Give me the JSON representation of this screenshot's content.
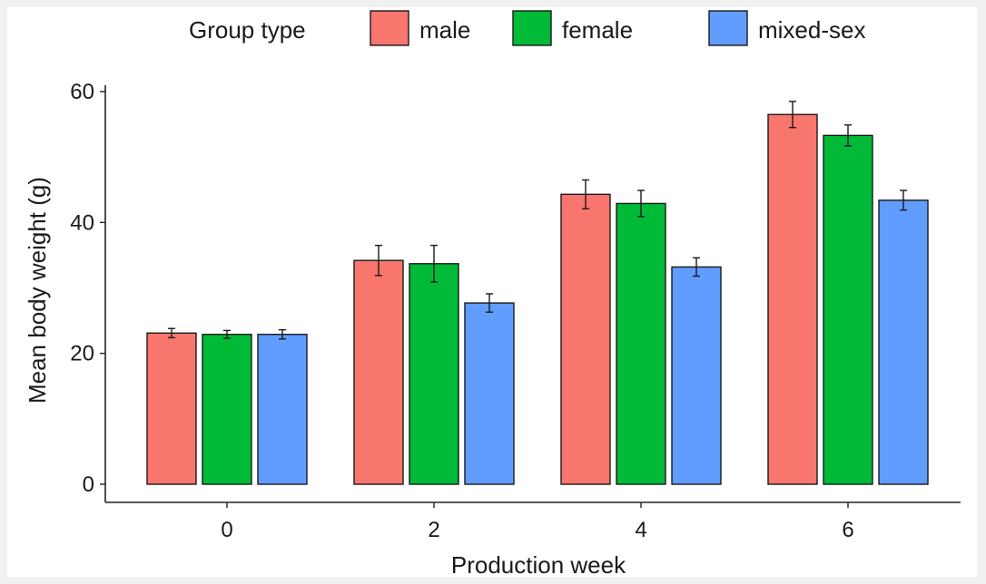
{
  "chart_data": {
    "type": "bar",
    "xlabel": "Production week",
    "ylabel": "Mean body weight (g)",
    "ylim": [
      0,
      60
    ],
    "yticks": [
      0,
      20,
      40,
      60
    ],
    "categories": [
      "0",
      "2",
      "4",
      "6"
    ],
    "legend": {
      "title": "Group type",
      "position": "top"
    },
    "grid": false,
    "series": [
      {
        "name": "male",
        "color": "#F8766D",
        "values": [
          23.1,
          34.2,
          44.3,
          56.5
        ],
        "errors": [
          0.7,
          2.3,
          2.2,
          2.0
        ]
      },
      {
        "name": "female",
        "color": "#00BA38",
        "values": [
          22.9,
          33.7,
          42.9,
          53.3
        ],
        "errors": [
          0.6,
          2.8,
          2.0,
          1.6
        ]
      },
      {
        "name": "mixed-sex",
        "color": "#619CFF",
        "values": [
          22.9,
          27.7,
          33.2,
          43.4
        ],
        "errors": [
          0.7,
          1.4,
          1.4,
          1.5
        ]
      }
    ]
  }
}
